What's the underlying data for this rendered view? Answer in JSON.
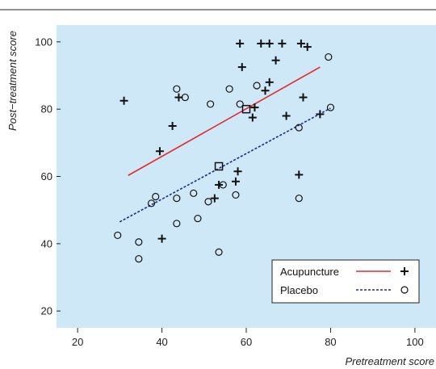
{
  "chart_data": {
    "type": "scatter",
    "title": "",
    "xlabel": "Pretreatment score",
    "ylabel": "Post−treatment score",
    "xlim": [
      15,
      105
    ],
    "ylim": [
      15,
      105
    ],
    "x_ticks": [
      20,
      40,
      60,
      80,
      100
    ],
    "y_ticks": [
      20,
      40,
      60,
      80,
      100
    ],
    "grid": false,
    "legend_position": "bottom-right",
    "background_color": "#cfe8f7",
    "series": [
      {
        "name": "Acupuncture",
        "marker": "plus",
        "color": "#111111",
        "line_color": "#e32b2b",
        "line_style": "solid",
        "points": [
          [
            31,
            82.5
          ],
          [
            39.5,
            67.5
          ],
          [
            40,
            41.5
          ],
          [
            42.5,
            75
          ],
          [
            44,
            83.5
          ],
          [
            52.5,
            53.5
          ],
          [
            53.5,
            57.5
          ],
          [
            57.5,
            58.5
          ],
          [
            58,
            61.5
          ],
          [
            58.5,
            99.5
          ],
          [
            59,
            92.5
          ],
          [
            61.5,
            77.5
          ],
          [
            62,
            80.5
          ],
          [
            63.5,
            99.5
          ],
          [
            64.5,
            85.5
          ],
          [
            65.5,
            99.5
          ],
          [
            65.5,
            88
          ],
          [
            67,
            94.5
          ],
          [
            68.5,
            99.5
          ],
          [
            69.5,
            78
          ],
          [
            72.5,
            60.5
          ],
          [
            73,
            99.5
          ],
          [
            73.5,
            83.5
          ],
          [
            74.5,
            98.5
          ],
          [
            77.5,
            78.5
          ]
        ],
        "fit_line": [
          [
            32,
            60.3
          ],
          [
            77.5,
            92.5
          ]
        ],
        "mean_point": [
          60,
          80
        ]
      },
      {
        "name": "Placebo",
        "marker": "circle",
        "color": "#111111",
        "line_color": "#1f2a8a",
        "line_style": "dashed",
        "points": [
          [
            29.5,
            42.5
          ],
          [
            34.5,
            40.5
          ],
          [
            34.5,
            35.5
          ],
          [
            37.5,
            52
          ],
          [
            38.5,
            54
          ],
          [
            43.5,
            53.5
          ],
          [
            43.5,
            86
          ],
          [
            43.5,
            46
          ],
          [
            45.5,
            83.5
          ],
          [
            47.5,
            55
          ],
          [
            48.5,
            47.5
          ],
          [
            51,
            52.5
          ],
          [
            51.5,
            81.5
          ],
          [
            53.5,
            37.5
          ],
          [
            54.5,
            57.5
          ],
          [
            56,
            86
          ],
          [
            57.5,
            54.5
          ],
          [
            58.5,
            81.5
          ],
          [
            62.5,
            87
          ],
          [
            72.5,
            74.5
          ],
          [
            72.5,
            53.5
          ],
          [
            79.5,
            95.5
          ],
          [
            80,
            80.5
          ]
        ],
        "fit_line": [
          [
            30,
            46.5
          ],
          [
            80,
            80.3
          ]
        ],
        "mean_point": [
          53.5,
          63
        ]
      }
    ]
  }
}
